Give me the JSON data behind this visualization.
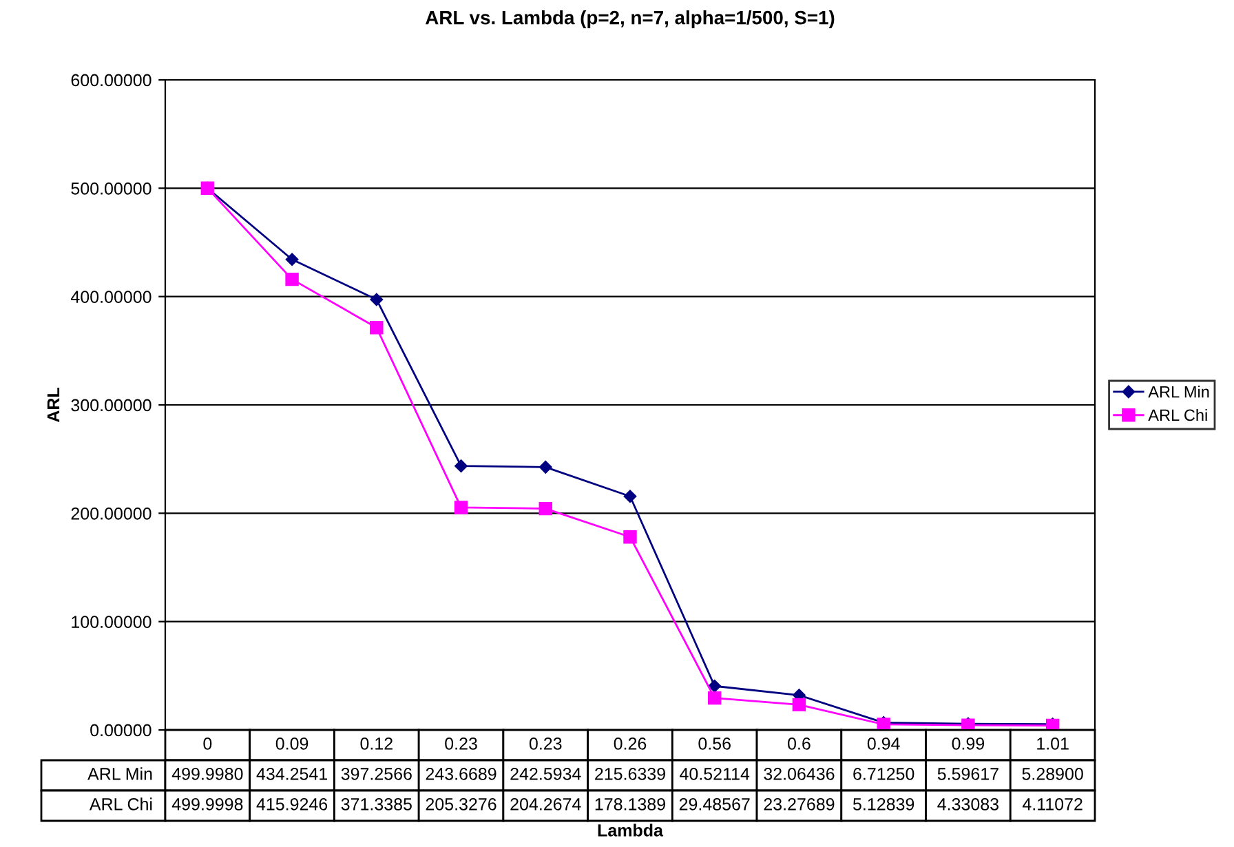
{
  "chart_data": {
    "type": "line",
    "title": "ARL vs. Lambda (p=2, n=7, alpha=1/500, S=1)",
    "xlabel": "Lambda",
    "ylabel": "ARL",
    "categories": [
      "0",
      "0.09",
      "0.12",
      "0.23",
      "0.23",
      "0.26",
      "0.56",
      "0.6",
      "0.94",
      "0.99",
      "1.01"
    ],
    "series": [
      {
        "name": "ARL Min",
        "color": "#000080",
        "marker": "diamond",
        "values": [
          499.998,
          434.2541,
          397.2566,
          243.6689,
          242.5934,
          215.6339,
          40.52114,
          32.06436,
          6.7125,
          5.59617,
          5.289
        ],
        "value_labels": [
          "499.9980",
          "434.2541",
          "397.2566",
          "243.6689",
          "242.5934",
          "215.6339",
          "40.52114",
          "32.06436",
          "6.71250",
          "5.59617",
          "5.28900"
        ]
      },
      {
        "name": "ARL Chi",
        "color": "#ff00ff",
        "marker": "square",
        "values": [
          499.9998,
          415.9246,
          371.3385,
          205.3276,
          204.2674,
          178.1389,
          29.48567,
          23.27689,
          5.12839,
          4.33083,
          4.11072
        ],
        "value_labels": [
          "499.9998",
          "415.9246",
          "371.3385",
          "205.3276",
          "204.2674",
          "178.1389",
          "29.48567",
          "23.27689",
          "5.12839",
          "4.33083",
          "4.11072"
        ]
      }
    ],
    "ylim": [
      0,
      600
    ],
    "yticks": [
      {
        "value": 0,
        "label": "0.00000"
      },
      {
        "value": 100,
        "label": "100.00000"
      },
      {
        "value": 200,
        "label": "200.00000"
      },
      {
        "value": 300,
        "label": "300.00000"
      },
      {
        "value": 400,
        "label": "400.00000"
      },
      {
        "value": 500,
        "label": "500.00000"
      },
      {
        "value": 600,
        "label": "600.00000"
      }
    ],
    "grid": "y",
    "legend": "right",
    "line_style": "solid"
  }
}
